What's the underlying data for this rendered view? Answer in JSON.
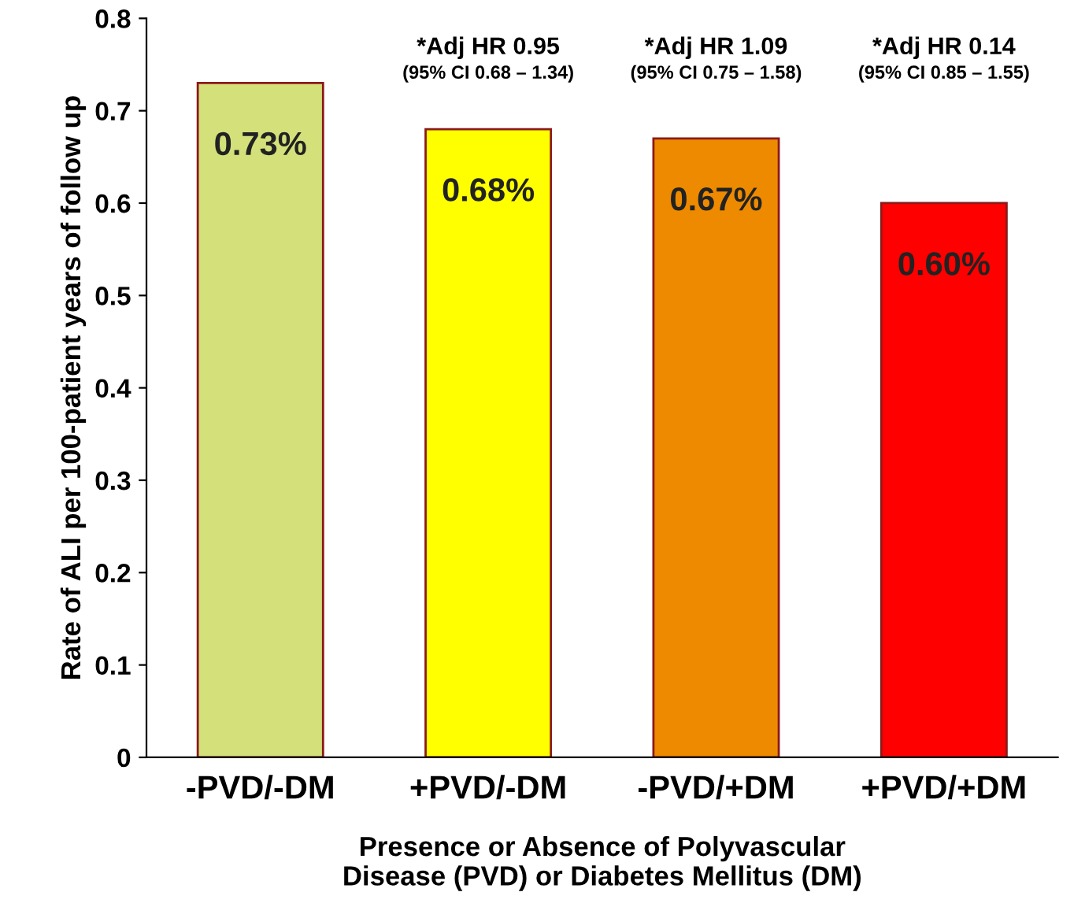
{
  "chart_data": {
    "type": "bar",
    "xlabel": "Presence or Absence of Polyvascular\nDisease (PVD) or Diabetes Mellitus (DM)",
    "ylabel": "Rate of ALI per 100-patient years of follow up",
    "categories": [
      "-PVD/-DM",
      "+PVD/-DM",
      "-PVD/+DM",
      "+PVD/+DM"
    ],
    "values": [
      0.73,
      0.68,
      0.67,
      0.6
    ],
    "colors": [
      "#d4e07a",
      "#ffff00",
      "#ee8a00",
      "#ff0000"
    ],
    "value_labels": [
      "0.73%",
      "0.68%",
      "0.67%",
      "0.60%"
    ],
    "ylim": [
      0,
      0.8
    ],
    "yticks": [
      0,
      0.1,
      0.2,
      0.3,
      0.4,
      0.5,
      0.6,
      0.7,
      0.8
    ],
    "grid": false,
    "annotations": [
      "*Adj HR 0.95",
      "(95% CI 0.68 – 1.34)",
      "*Adj HR 1.09",
      "(95% CI 0.75 – 1.58)",
      "*Adj HR 0.14",
      "(95% CI 0.85 – 1.55)"
    ]
  }
}
